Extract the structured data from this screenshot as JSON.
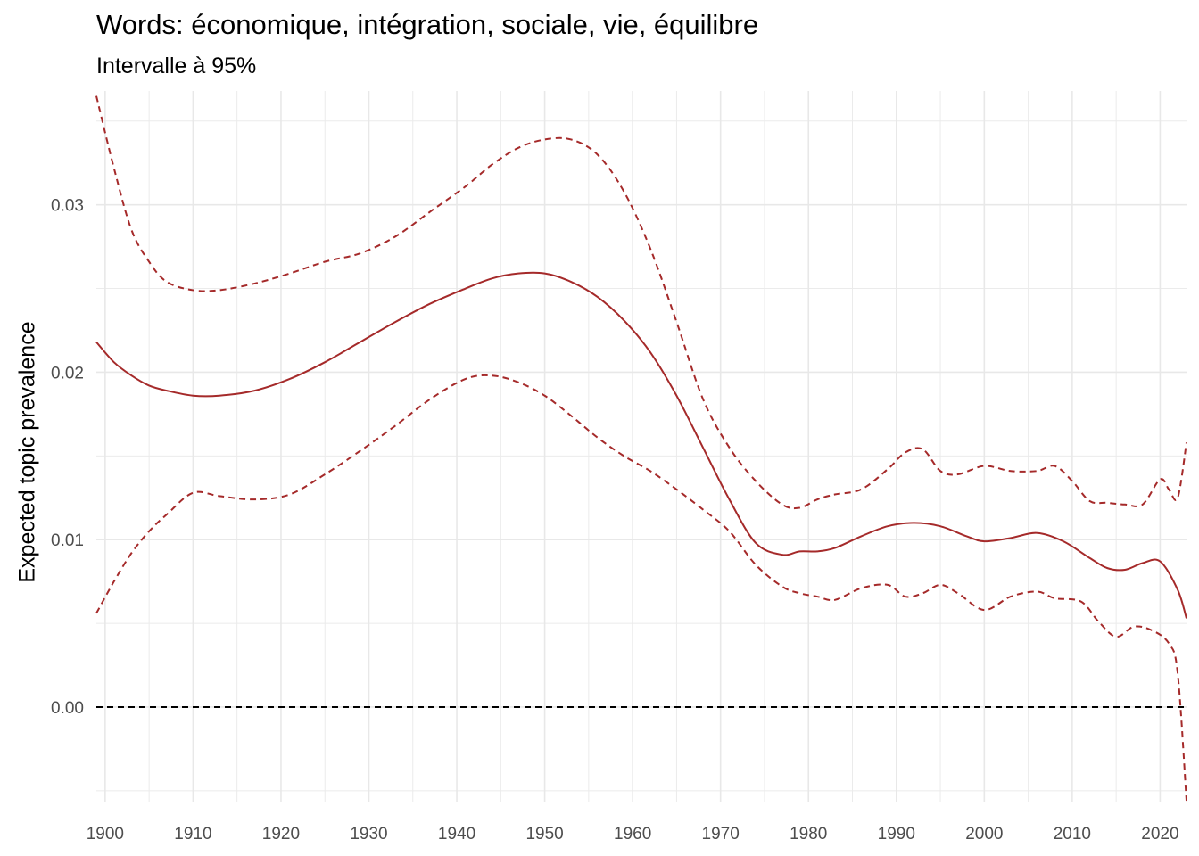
{
  "chart_data": {
    "type": "line",
    "title": "Words: économique, intégration, sociale, vie, équilibre",
    "subtitle": "Intervalle à 95%",
    "xlabel": "",
    "ylabel": "Expected topic prevalence",
    "xlim": [
      1899,
      2023
    ],
    "ylim": [
      -0.0057,
      0.0368
    ],
    "x_ticks": [
      1900,
      1910,
      1920,
      1930,
      1940,
      1950,
      1960,
      1970,
      1980,
      1990,
      2000,
      2010,
      2020
    ],
    "y_ticks": [
      0.0,
      0.01,
      0.02,
      0.03
    ],
    "y_tick_labels": [
      "0.00",
      "0.01",
      "0.02",
      "0.03"
    ],
    "grid": true,
    "reference_line": {
      "y": 0,
      "style": "dashed",
      "color": "#000000"
    },
    "line_color": "#a52a2a",
    "series": [
      {
        "role": "estimate",
        "style": "solid",
        "x": [
          1899,
          1901,
          1903,
          1905,
          1907,
          1910,
          1913,
          1917,
          1921,
          1925,
          1929,
          1933,
          1937,
          1941,
          1944,
          1947,
          1950,
          1953,
          1956,
          1959,
          1962,
          1965,
          1968,
          1971,
          1974,
          1977,
          1979,
          1981,
          1983,
          1986,
          1989,
          1992,
          1995,
          1998,
          2000,
          2003,
          2006,
          2009,
          2012,
          2014,
          2016,
          2018,
          2020,
          2022,
          2023
        ],
        "y": [
          0.0218,
          0.0206,
          0.0198,
          0.0192,
          0.0189,
          0.0186,
          0.0186,
          0.0189,
          0.0196,
          0.0206,
          0.0218,
          0.023,
          0.0241,
          0.025,
          0.0256,
          0.0259,
          0.0259,
          0.0254,
          0.0245,
          0.0231,
          0.0212,
          0.0186,
          0.0155,
          0.0124,
          0.0098,
          0.0091,
          0.0093,
          0.0093,
          0.0095,
          0.0102,
          0.0108,
          0.011,
          0.0108,
          0.0102,
          0.0099,
          0.0101,
          0.0104,
          0.0099,
          0.0089,
          0.0083,
          0.0082,
          0.0086,
          0.0087,
          0.007,
          0.0053
        ]
      },
      {
        "role": "upper_95",
        "style": "dashed",
        "x": [
          1899,
          1901,
          1903,
          1905,
          1907,
          1910,
          1913,
          1917,
          1921,
          1925,
          1929,
          1933,
          1937,
          1941,
          1944,
          1947,
          1950,
          1953,
          1956,
          1959,
          1962,
          1965,
          1968,
          1971,
          1974,
          1977,
          1979,
          1981,
          1983,
          1986,
          1989,
          1991,
          1993,
          1995,
          1997,
          2000,
          2003,
          2006,
          2008,
          2010,
          2012,
          2014,
          2016,
          2018,
          2020,
          2021,
          2022,
          2023
        ],
        "y": [
          0.0365,
          0.0322,
          0.0285,
          0.0266,
          0.0254,
          0.0249,
          0.0249,
          0.0253,
          0.0259,
          0.0266,
          0.0271,
          0.0281,
          0.0296,
          0.0311,
          0.0324,
          0.0334,
          0.0339,
          0.0339,
          0.033,
          0.0308,
          0.0274,
          0.023,
          0.0184,
          0.0155,
          0.0135,
          0.0121,
          0.0119,
          0.0124,
          0.0127,
          0.013,
          0.0142,
          0.0152,
          0.0154,
          0.0141,
          0.0139,
          0.0144,
          0.0141,
          0.0141,
          0.0144,
          0.0135,
          0.0123,
          0.0122,
          0.0121,
          0.0121,
          0.0136,
          0.013,
          0.0125,
          0.0158
        ]
      },
      {
        "role": "lower_95",
        "style": "dashed",
        "x": [
          1899,
          1901,
          1903,
          1905,
          1907,
          1910,
          1913,
          1917,
          1921,
          1925,
          1929,
          1933,
          1937,
          1941,
          1944,
          1947,
          1950,
          1953,
          1956,
          1959,
          1962,
          1965,
          1968,
          1971,
          1974,
          1977,
          1979,
          1981,
          1983,
          1986,
          1989,
          1991,
          1993,
          1995,
          1997,
          2000,
          2003,
          2006,
          2008,
          2011,
          2013,
          2015,
          2017,
          2019,
          2021,
          2022,
          2023
        ],
        "y": [
          0.0056,
          0.0075,
          0.0092,
          0.0105,
          0.0115,
          0.0128,
          0.0126,
          0.0124,
          0.0127,
          0.0139,
          0.0153,
          0.0168,
          0.0184,
          0.0196,
          0.0198,
          0.0194,
          0.0186,
          0.0174,
          0.0161,
          0.015,
          0.0141,
          0.013,
          0.0118,
          0.0105,
          0.0085,
          0.0072,
          0.0068,
          0.0066,
          0.0064,
          0.0071,
          0.0073,
          0.0066,
          0.0068,
          0.0073,
          0.0068,
          0.0058,
          0.0066,
          0.0069,
          0.0065,
          0.0063,
          0.0051,
          0.0042,
          0.0048,
          0.0046,
          0.0038,
          0.002,
          -0.0056
        ]
      }
    ]
  }
}
